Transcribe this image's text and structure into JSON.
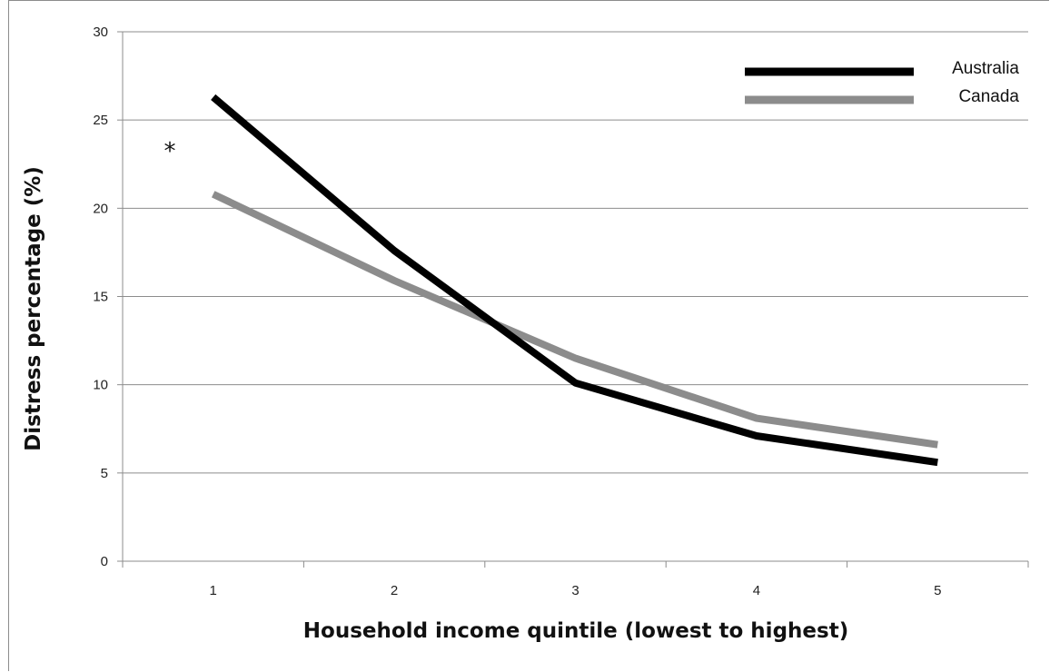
{
  "chart_data": {
    "type": "line",
    "title": "",
    "xlabel": "Household income quintile (lowest to highest)",
    "ylabel": "Distress percentage (%)",
    "categories": [
      "1",
      "2",
      "3",
      "4",
      "5"
    ],
    "ylim": [
      0,
      30
    ],
    "yticks": [
      "0",
      "5",
      "10",
      "15",
      "20",
      "25",
      "30"
    ],
    "grid": true,
    "legend_position": "top-right",
    "series": [
      {
        "name": "Australia",
        "color": "#000000",
        "values": [
          26.3,
          17.6,
          10.1,
          7.1,
          5.6
        ]
      },
      {
        "name": "Canada",
        "color": "#8c8c8c",
        "values": [
          20.8,
          15.9,
          11.5,
          8.1,
          6.6
        ]
      }
    ],
    "annotations": [
      {
        "text": "*"
      }
    ]
  }
}
